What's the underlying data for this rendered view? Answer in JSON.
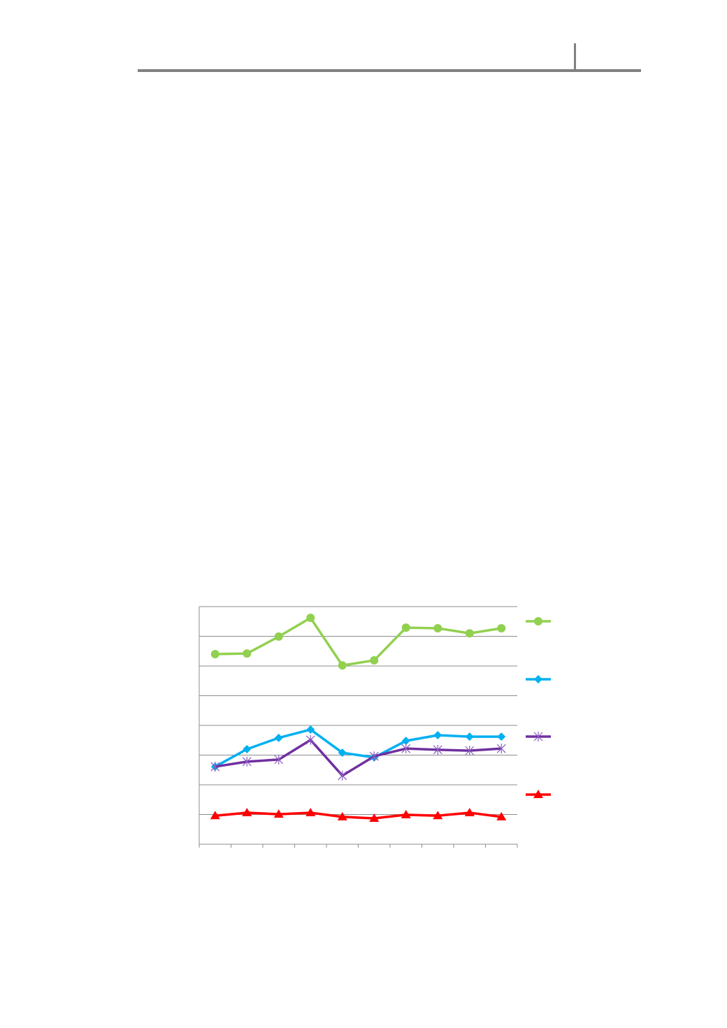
{
  "header": {
    "rule_color": "#808080"
  },
  "chart_data": {
    "type": "line",
    "title": "",
    "xlabel": "",
    "ylabel": "",
    "categories_count": 10,
    "ylim": [
      0,
      8
    ],
    "y_gridlines": [
      0,
      1,
      2,
      3,
      4,
      5,
      6,
      7,
      8
    ],
    "grid": true,
    "legend_placement": "right",
    "tick_labels_printed": false,
    "series": [
      {
        "color": "#92d050",
        "marker": "circle",
        "values": [
          6.4,
          6.42,
          6.99,
          7.62,
          6.02,
          6.19,
          7.29,
          7.27,
          7.1,
          7.27
        ]
      },
      {
        "color": "#00b0f0",
        "marker": "diamond",
        "values": [
          2.61,
          3.2,
          3.58,
          3.86,
          3.08,
          2.92,
          3.48,
          3.67,
          3.62,
          3.62
        ]
      },
      {
        "color": "#7030a0",
        "marker": "star",
        "values": [
          2.61,
          2.78,
          2.85,
          3.51,
          2.31,
          2.96,
          3.22,
          3.18,
          3.15,
          3.22
        ]
      },
      {
        "color": "#ff0000",
        "marker": "triangle",
        "values": [
          0.96,
          1.06,
          1.01,
          1.06,
          0.92,
          0.87,
          0.99,
          0.96,
          1.06,
          0.92
        ]
      }
    ]
  }
}
